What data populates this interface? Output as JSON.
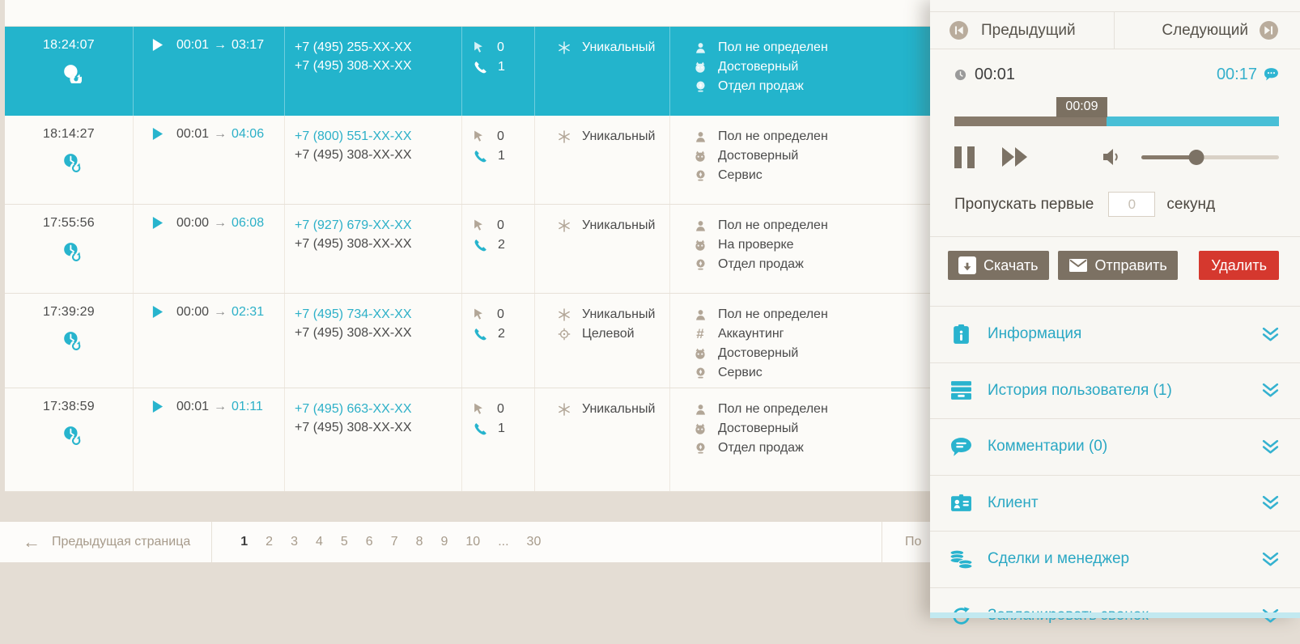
{
  "colors": {
    "teal": "#23b4cc",
    "teal_text": "#2cb0c8",
    "taupe": "#a79b8b",
    "dark_taupe": "#7c7163",
    "red": "#d5382e",
    "text_dark": "#4b4b4b",
    "panel_bg": "#f8f7f3",
    "page_bg": "#e4ddd4"
  },
  "glyphs": {
    "arrow_right": "→",
    "arrow_left": "←",
    "hash": "#"
  },
  "table": {
    "rows": [
      {
        "selected": true,
        "time": "18:24:07",
        "wait": "00:01",
        "answer": "03:17",
        "phone_a": "+7 (495) 255-XX-XX",
        "phone_b": "+7 (495) 308-XX-XX",
        "visits": "0",
        "calls": "1",
        "quality": [
          {
            "icon": "asterisk-icon",
            "label": "Уникальный"
          }
        ],
        "tags": [
          {
            "icon": "person-icon",
            "label": "Пол не определен"
          },
          {
            "icon": "robot-icon",
            "label": "Достоверный"
          },
          {
            "icon": "operator-icon",
            "label": "Отдел продаж"
          }
        ]
      },
      {
        "selected": false,
        "time": "18:14:27",
        "wait": "00:01",
        "answer": "04:06",
        "phone_a": "+7 (800) 551-XX-XX",
        "phone_b": "+7 (495) 308-XX-XX",
        "visits": "0",
        "calls": "1",
        "quality": [
          {
            "icon": "asterisk-icon",
            "label": "Уникальный"
          }
        ],
        "tags": [
          {
            "icon": "person-icon",
            "label": "Пол не определен"
          },
          {
            "icon": "robot-icon",
            "label": "Достоверный"
          },
          {
            "icon": "operator-icon",
            "label": "Сервис"
          }
        ]
      },
      {
        "selected": false,
        "time": "17:55:56",
        "wait": "00:00",
        "answer": "06:08",
        "phone_a": "+7 (927) 679-XX-XX",
        "phone_b": "+7 (495) 308-XX-XX",
        "visits": "0",
        "calls": "2",
        "quality": [
          {
            "icon": "asterisk-icon",
            "label": "Уникальный"
          }
        ],
        "tags": [
          {
            "icon": "person-icon",
            "label": "Пол не определен"
          },
          {
            "icon": "robot-icon",
            "label": "На проверке"
          },
          {
            "icon": "operator-icon",
            "label": "Отдел продаж"
          }
        ]
      },
      {
        "selected": false,
        "time": "17:39:29",
        "wait": "00:00",
        "answer": "02:31",
        "phone_a": "+7 (495) 734-XX-XX",
        "phone_b": "+7 (495) 308-XX-XX",
        "visits": "0",
        "calls": "2",
        "quality": [
          {
            "icon": "asterisk-icon",
            "label": "Уникальный"
          },
          {
            "icon": "target-icon",
            "label": "Целевой"
          }
        ],
        "tags": [
          {
            "icon": "person-icon",
            "label": "Пол не определен"
          },
          {
            "icon": "hash-icon",
            "label": "Аккаунтинг"
          },
          {
            "icon": "robot-icon",
            "label": "Достоверный"
          },
          {
            "icon": "operator-icon",
            "label": "Сервис"
          }
        ]
      },
      {
        "selected": false,
        "time": "17:38:59",
        "wait": "00:01",
        "answer": "01:11",
        "phone_a": "+7 (495) 663-XX-XX",
        "phone_b": "+7 (495) 308-XX-XX",
        "visits": "0",
        "calls": "1",
        "quality": [
          {
            "icon": "asterisk-icon",
            "label": "Уникальный"
          }
        ],
        "tags": [
          {
            "icon": "person-icon",
            "label": "Пол не определен"
          },
          {
            "icon": "robot-icon",
            "label": "Достоверный"
          },
          {
            "icon": "operator-icon",
            "label": "Отдел продаж"
          }
        ]
      }
    ]
  },
  "pagination": {
    "prev_label": "Предыдущая страница",
    "pages": [
      "1",
      "2",
      "3",
      "4",
      "5",
      "6",
      "7",
      "8",
      "9",
      "10",
      "...",
      "30"
    ],
    "active_page": "1",
    "right_fragment": "По"
  },
  "panel": {
    "prev_label": "Предыдущий",
    "next_label": "Следующий",
    "player": {
      "elapsed": "00:01",
      "total": "00:17",
      "tooltip": "00:09",
      "progress_pct": 47,
      "volume_pct": 40,
      "skip_label_before": "Пропускать первые",
      "skip_placeholder": "0",
      "skip_label_after": "секунд"
    },
    "actions": {
      "download": "Скачать",
      "send": "Отправить",
      "delete": "Удалить"
    },
    "sections": [
      {
        "icon": "info-clipboard-icon",
        "label": "Информация"
      },
      {
        "icon": "history-box-icon",
        "label": "История пользователя (1)"
      },
      {
        "icon": "comments-bubble-icon",
        "label": "Комментарии (0)"
      },
      {
        "icon": "client-badge-icon",
        "label": "Клиент"
      },
      {
        "icon": "deals-coins-icon",
        "label": "Сделки и менеджер"
      },
      {
        "icon": "schedule-call-icon",
        "label": "Запланировать звонок"
      }
    ]
  }
}
